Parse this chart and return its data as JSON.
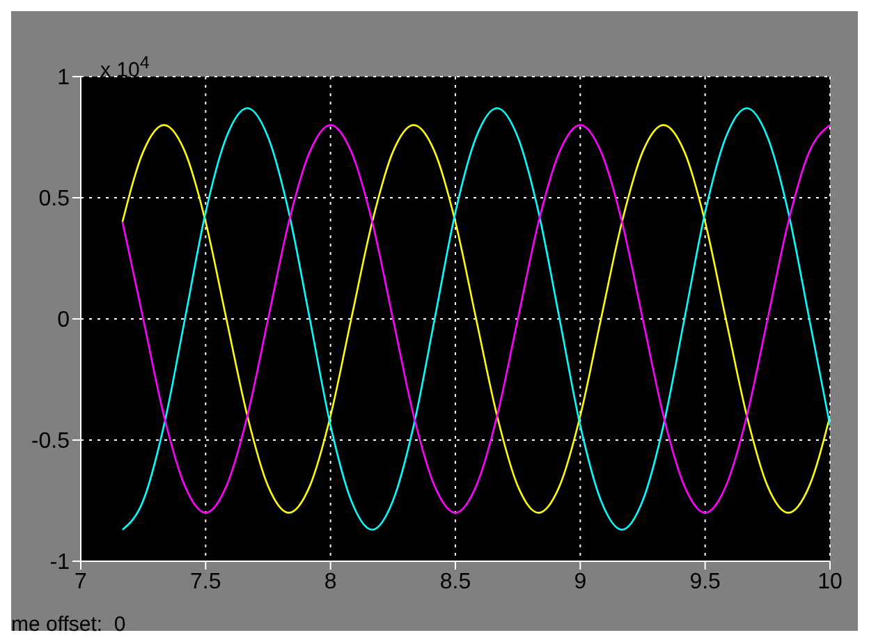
{
  "chart_data": {
    "type": "line",
    "annotations": [
      "x 10$^{4}$",
      "me offset:  0"
    ],
    "x": [
      7.167,
      7.25,
      7.333,
      7.417,
      7.5,
      7.583,
      7.667,
      7.75,
      7.833,
      7.917,
      8,
      8.083,
      8.167,
      8.25,
      8.333,
      8.417,
      8.5,
      8.583,
      8.667,
      8.75,
      8.833,
      8.917,
      9,
      9.083,
      9.167,
      9.25,
      9.333,
      9.417,
      9.5,
      9.583,
      9.667,
      9.75,
      9.833,
      9.917,
      10
    ],
    "series": [
      {
        "color": "#ffff00",
        "values": [
          0.4,
          0.69,
          0.8,
          0.69,
          0.4,
          0,
          -0.4,
          -0.69,
          -0.8,
          -0.69,
          -0.4,
          0,
          0.4,
          0.69,
          0.8,
          0.69,
          0.4,
          0,
          -0.4,
          -0.69,
          -0.8,
          -0.69,
          -0.4,
          0,
          0.4,
          0.69,
          0.8,
          0.69,
          0.4,
          0,
          -0.4,
          -0.69,
          -0.8,
          -0.69,
          -0.4
        ]
      },
      {
        "color": "#00ffff",
        "values": [
          -0.87,
          -0.75,
          -0.44,
          0,
          0.44,
          0.75,
          0.87,
          0.75,
          0.44,
          0,
          -0.44,
          -0.75,
          -0.87,
          -0.75,
          -0.44,
          0,
          0.44,
          0.75,
          0.87,
          0.75,
          0.44,
          0,
          -0.44,
          -0.75,
          -0.87,
          -0.75,
          -0.44,
          0,
          0.44,
          0.75,
          0.87,
          0.75,
          0.44,
          0,
          -0.44
        ]
      },
      {
        "color": "#ff00ff",
        "values": [
          0.4,
          0,
          -0.4,
          -0.69,
          -0.8,
          -0.69,
          -0.4,
          0,
          0.4,
          0.69,
          0.8,
          0.69,
          0.4,
          0,
          -0.4,
          -0.69,
          -0.8,
          -0.69,
          -0.4,
          0,
          0.4,
          0.69,
          0.8,
          0.69,
          0.4,
          0,
          -0.4,
          -0.69,
          -0.8,
          -0.69,
          -0.4,
          0,
          0.4,
          0.69,
          0.8
        ]
      }
    ],
    "xlim": [
      7,
      10
    ],
    "xticks": [
      7,
      7.5,
      8,
      8.5,
      9,
      9.5,
      10
    ],
    "ylim": [
      -1,
      1
    ],
    "yticks": [
      -1,
      -0.5,
      0,
      0.5,
      1
    ],
    "grid": true,
    "marker": "none",
    "line_style": "solid"
  }
}
